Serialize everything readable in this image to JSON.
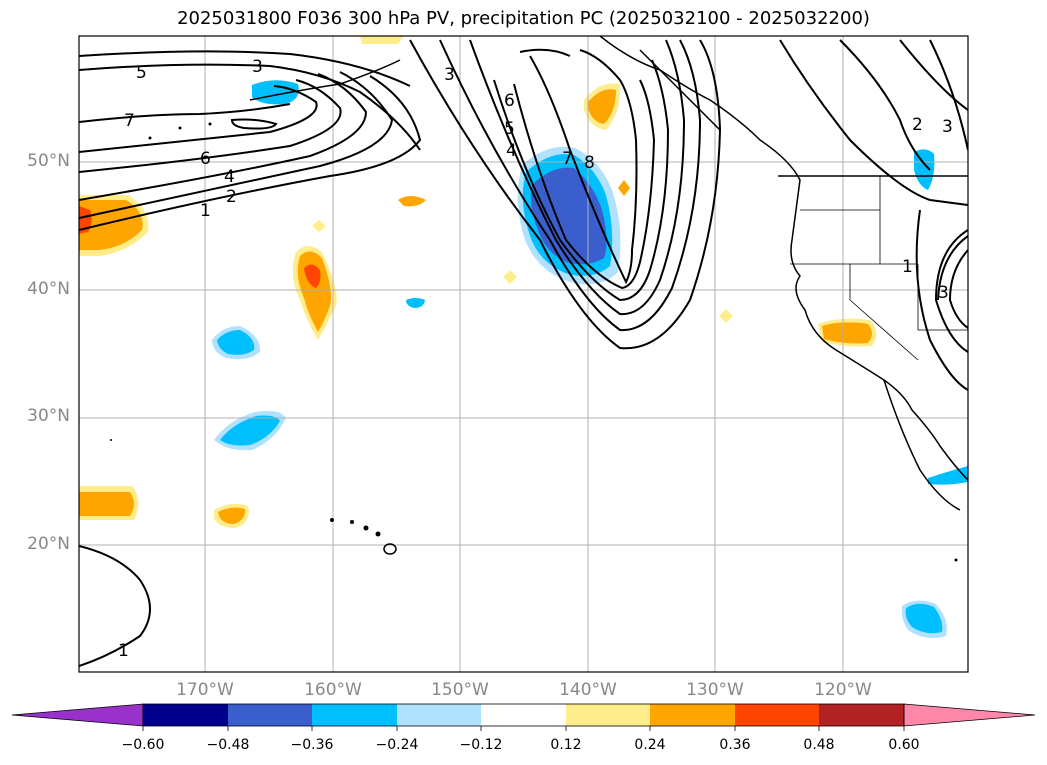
{
  "title": "2025031800 F036 300 hPa PV, precipitation PC (2025032100 - 2025032200)",
  "map": {
    "lat_labels": [
      "50°N",
      "40°N",
      "30°N",
      "20°N"
    ],
    "lon_labels": [
      "170°W",
      "160°W",
      "150°W",
      "140°W",
      "130°W",
      "120°W"
    ],
    "contour_labels": [
      "5",
      "3",
      "7",
      "6",
      "4",
      "2",
      "1",
      "3",
      "6",
      "5",
      "4",
      "7",
      "8",
      "2",
      "3",
      "1",
      "3",
      "1"
    ]
  },
  "colorbar": {
    "ticks": [
      "−0.60",
      "−0.48",
      "−0.36",
      "−0.24",
      "−0.12",
      "0.12",
      "0.24",
      "0.36",
      "0.48",
      "0.60"
    ],
    "colors": [
      "#9932cc",
      "#00008b",
      "#3a5fcd",
      "#00bfff",
      "#b0e2ff",
      "#ffffff",
      "#ffec8b",
      "#ffa500",
      "#ff4500",
      "#b22222",
      "#ff88aa"
    ]
  }
}
